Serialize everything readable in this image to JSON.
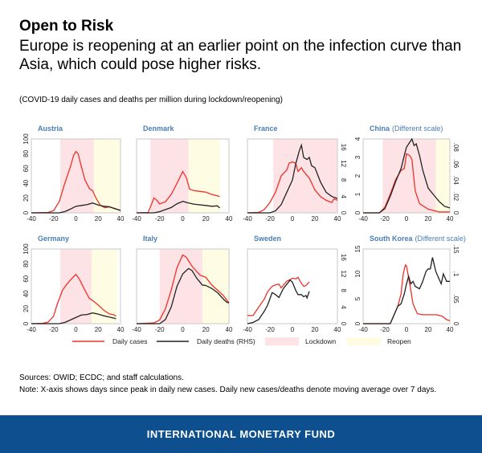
{
  "header": {
    "title": "Open to Risk",
    "subtitle": "Europe is reopening at an earlier point on the infection curve than Asia, which could pose higher risks.",
    "caption": "(COVID-19 daily cases and deaths per million during lockdown/reopening)"
  },
  "sources": "Sources: OWID; ECDC; and staff calculations.",
  "note": "Note: X-axis shows days since peak in daily new cases. Daily new cases/deaths denote moving average over 7 days.",
  "footer": "INTERNATIONAL MONETARY FUND",
  "colors": {
    "cases": "#f0302a",
    "deaths": "#222222",
    "lockdown": "#fde3e5",
    "reopen": "#fefde3",
    "title": "#4a7fb5",
    "footer": "#0d4f8f"
  },
  "legend": {
    "cases": "Daily cases",
    "deaths": "Daily deaths (RHS)",
    "lockdown": "Lockdown",
    "reopen": "Reopen"
  },
  "chart_data": [
    {
      "type": "line",
      "title": "Austria",
      "xlim": [
        -40,
        40
      ],
      "xticks": [
        "-40",
        "-20",
        "0",
        "20",
        "40"
      ],
      "ylim": [
        0,
        100
      ],
      "yticks": [
        "0",
        "20",
        "40",
        "60",
        "80",
        "100"
      ],
      "y2lim": [
        0,
        18
      ],
      "lockdown": [
        -14,
        16
      ],
      "reopen": [
        16,
        40
      ],
      "cases": [
        [
          -40,
          0
        ],
        [
          -25,
          0.5
        ],
        [
          -20,
          3
        ],
        [
          -15,
          15
        ],
        [
          -10,
          40
        ],
        [
          -5,
          62
        ],
        [
          -2,
          78
        ],
        [
          0,
          83
        ],
        [
          2,
          80
        ],
        [
          5,
          62
        ],
        [
          8,
          45
        ],
        [
          12,
          33
        ],
        [
          15,
          30
        ],
        [
          18,
          20
        ],
        [
          22,
          10
        ],
        [
          26,
          7
        ],
        [
          30,
          8
        ],
        [
          35,
          6
        ],
        [
          40,
          3
        ]
      ],
      "deaths": [
        [
          -40,
          0
        ],
        [
          -15,
          0
        ],
        [
          -10,
          0.3
        ],
        [
          -5,
          0.9
        ],
        [
          0,
          1.6
        ],
        [
          5,
          1.8
        ],
        [
          10,
          2.0
        ],
        [
          15,
          2.4
        ],
        [
          20,
          1.9
        ],
        [
          25,
          1.6
        ],
        [
          30,
          1.5
        ],
        [
          35,
          1.0
        ],
        [
          40,
          0.6
        ]
      ]
    },
    {
      "type": "line",
      "title": "Denmark",
      "xlim": [
        -40,
        40
      ],
      "xticks": [
        "-40",
        "-20",
        "0",
        "20",
        "40"
      ],
      "ylim": [
        0,
        100
      ],
      "y2lim": [
        0,
        18
      ],
      "lockdown": [
        -28,
        5
      ],
      "reopen": [
        5,
        32
      ],
      "cases": [
        [
          -40,
          0
        ],
        [
          -30,
          0.5
        ],
        [
          -28,
          8
        ],
        [
          -25,
          20
        ],
        [
          -23,
          18
        ],
        [
          -20,
          12
        ],
        [
          -15,
          15
        ],
        [
          -10,
          25
        ],
        [
          -5,
          40
        ],
        [
          0,
          56
        ],
        [
          3,
          48
        ],
        [
          6,
          32
        ],
        [
          10,
          30
        ],
        [
          15,
          29
        ],
        [
          20,
          28
        ],
        [
          25,
          25
        ],
        [
          30,
          23
        ],
        [
          32,
          22
        ]
      ],
      "deaths": [
        [
          -40,
          0
        ],
        [
          -25,
          0
        ],
        [
          -20,
          0.3
        ],
        [
          -10,
          1.3
        ],
        [
          -5,
          2.2
        ],
        [
          0,
          2.8
        ],
        [
          5,
          2.4
        ],
        [
          10,
          2.1
        ],
        [
          20,
          1.8
        ],
        [
          25,
          1.6
        ],
        [
          30,
          1.7
        ],
        [
          32,
          1.2
        ]
      ]
    },
    {
      "type": "line",
      "title": "France",
      "xlim": [
        -40,
        40
      ],
      "xticks": [
        "-40",
        "-20",
        "0",
        "20",
        "40"
      ],
      "ylim": [
        0,
        100
      ],
      "y2lim": [
        0,
        18
      ],
      "y2ticks": [
        "0",
        "4",
        "8",
        "12",
        "16"
      ],
      "lockdown": [
        -17,
        40
      ],
      "cases": [
        [
          -40,
          0
        ],
        [
          -30,
          0.6
        ],
        [
          -25,
          4.4
        ],
        [
          -20,
          14
        ],
        [
          -15,
          28
        ],
        [
          -10,
          50
        ],
        [
          -5,
          58
        ],
        [
          -3,
          67
        ],
        [
          0,
          69
        ],
        [
          3,
          67
        ],
        [
          5,
          56
        ],
        [
          8,
          61
        ],
        [
          10,
          56
        ],
        [
          15,
          47
        ],
        [
          20,
          31
        ],
        [
          25,
          22
        ],
        [
          30,
          17
        ],
        [
          35,
          14
        ],
        [
          37,
          19
        ],
        [
          40,
          17
        ]
      ],
      "deaths": [
        [
          -40,
          0
        ],
        [
          -20,
          0
        ],
        [
          -15,
          0.5
        ],
        [
          -10,
          2
        ],
        [
          -5,
          5
        ],
        [
          0,
          8
        ],
        [
          3,
          12
        ],
        [
          6,
          15
        ],
        [
          8,
          16.5
        ],
        [
          10,
          13.5
        ],
        [
          13,
          13
        ],
        [
          15,
          13.5
        ],
        [
          17,
          11.5
        ],
        [
          20,
          11
        ],
        [
          25,
          7.5
        ],
        [
          30,
          5
        ],
        [
          35,
          4
        ],
        [
          40,
          3.5
        ]
      ]
    },
    {
      "type": "line",
      "title": "China",
      "title_note": "(Different scale)",
      "xlim": [
        -40,
        40
      ],
      "xticks": [
        "-40",
        "-20",
        "0",
        "20",
        "40"
      ],
      "ylim": [
        0,
        4
      ],
      "yticks": [
        "0",
        "1",
        "2",
        "3",
        "4"
      ],
      "y2lim": [
        0,
        0.09
      ],
      "y2ticks": [
        "0",
        ".02",
        ".04",
        ".06",
        ".08"
      ],
      "lockdown": [
        -22,
        27
      ],
      "reopen": [
        27,
        40
      ],
      "cases": [
        [
          -40,
          0
        ],
        [
          -25,
          0
        ],
        [
          -20,
          0.3
        ],
        [
          -15,
          1
        ],
        [
          -10,
          1.8
        ],
        [
          -5,
          2.3
        ],
        [
          -2,
          2.4
        ],
        [
          0,
          3.2
        ],
        [
          3,
          3.1
        ],
        [
          5,
          2.9
        ],
        [
          8,
          1.2
        ],
        [
          12,
          0.5
        ],
        [
          20,
          0.2
        ],
        [
          30,
          0.05
        ],
        [
          40,
          0.05
        ]
      ],
      "deaths": [
        [
          -40,
          0
        ],
        [
          -25,
          0
        ],
        [
          -20,
          0.005
        ],
        [
          -15,
          0.02
        ],
        [
          -10,
          0.038
        ],
        [
          -5,
          0.054
        ],
        [
          -2,
          0.07
        ],
        [
          0,
          0.08
        ],
        [
          2,
          0.084
        ],
        [
          5,
          0.09
        ],
        [
          7,
          0.082
        ],
        [
          9,
          0.084
        ],
        [
          12,
          0.07
        ],
        [
          15,
          0.052
        ],
        [
          20,
          0.03
        ],
        [
          25,
          0.022
        ],
        [
          30,
          0.014
        ],
        [
          35,
          0.008
        ],
        [
          40,
          0.006
        ]
      ]
    },
    {
      "type": "line",
      "title": "Germany",
      "xlim": [
        -40,
        40
      ],
      "xticks": [
        "-40",
        "-20",
        "0",
        "20",
        "40"
      ],
      "ylim": [
        0,
        100
      ],
      "yticks": [
        "0",
        "20",
        "40",
        "60",
        "80",
        "100"
      ],
      "y2lim": [
        0,
        18
      ],
      "lockdown": [
        -14,
        14
      ],
      "reopen": [
        14,
        37
      ],
      "cases": [
        [
          -40,
          0
        ],
        [
          -30,
          0.5
        ],
        [
          -25,
          2
        ],
        [
          -20,
          10
        ],
        [
          -17,
          25
        ],
        [
          -12,
          45
        ],
        [
          -8,
          53
        ],
        [
          -4,
          60
        ],
        [
          0,
          66
        ],
        [
          3,
          60
        ],
        [
          8,
          45
        ],
        [
          12,
          34
        ],
        [
          15,
          31
        ],
        [
          20,
          25
        ],
        [
          25,
          18
        ],
        [
          30,
          13
        ],
        [
          34,
          12
        ],
        [
          36,
          10
        ]
      ],
      "deaths": [
        [
          -40,
          0
        ],
        [
          -15,
          0
        ],
        [
          -10,
          0.3
        ],
        [
          -5,
          0.9
        ],
        [
          0,
          1.5
        ],
        [
          5,
          2.1
        ],
        [
          10,
          2.2
        ],
        [
          15,
          2.6
        ],
        [
          20,
          2.3
        ],
        [
          25,
          1.9
        ],
        [
          30,
          1.6
        ],
        [
          36,
          1.2
        ]
      ]
    },
    {
      "type": "line",
      "title": "Italy",
      "xlim": [
        -40,
        40
      ],
      "xticks": [
        "-40",
        "-20",
        "0",
        "20",
        "40"
      ],
      "ylim": [
        0,
        100
      ],
      "y2lim": [
        0,
        18
      ],
      "lockdown": [
        -20,
        17
      ],
      "reopen": [
        17,
        40
      ],
      "cases": [
        [
          -40,
          0
        ],
        [
          -25,
          1
        ],
        [
          -20,
          5
        ],
        [
          -15,
          20
        ],
        [
          -10,
          45
        ],
        [
          -5,
          75
        ],
        [
          0,
          92
        ],
        [
          3,
          89
        ],
        [
          8,
          77
        ],
        [
          12,
          70
        ],
        [
          15,
          65
        ],
        [
          20,
          62
        ],
        [
          25,
          52
        ],
        [
          30,
          45
        ],
        [
          35,
          38
        ],
        [
          40,
          28
        ]
      ],
      "deaths": [
        [
          -40,
          0
        ],
        [
          -20,
          0
        ],
        [
          -15,
          1
        ],
        [
          -10,
          4
        ],
        [
          -5,
          9
        ],
        [
          0,
          12
        ],
        [
          5,
          13.3
        ],
        [
          8,
          12.8
        ],
        [
          12,
          11
        ],
        [
          17,
          9.3
        ],
        [
          20,
          9.2
        ],
        [
          25,
          8.5
        ],
        [
          30,
          7.5
        ],
        [
          35,
          6
        ],
        [
          38,
          5.2
        ],
        [
          40,
          5
        ]
      ]
    },
    {
      "type": "line",
      "title": "Sweden",
      "xlim": [
        -40,
        40
      ],
      "xticks": [
        "-40",
        "-20",
        "0",
        "20",
        "40"
      ],
      "ylim": [
        0,
        100
      ],
      "y2lim": [
        0,
        18
      ],
      "y2ticks": [
        "0",
        "4",
        "8",
        "12",
        "16"
      ],
      "cases": [
        [
          -40,
          11
        ],
        [
          -35,
          11
        ],
        [
          -30,
          22
        ],
        [
          -25,
          33
        ],
        [
          -22,
          43
        ],
        [
          -18,
          50
        ],
        [
          -15,
          52
        ],
        [
          -12,
          53
        ],
        [
          -10,
          48
        ],
        [
          -5,
          57
        ],
        [
          -2,
          59
        ],
        [
          0,
          61
        ],
        [
          3,
          60
        ],
        [
          5,
          62
        ],
        [
          8,
          54
        ],
        [
          10,
          50
        ],
        [
          12,
          51
        ],
        [
          15,
          56
        ]
      ],
      "deaths": [
        [
          -40,
          0
        ],
        [
          -35,
          0.3
        ],
        [
          -30,
          1
        ],
        [
          -25,
          3
        ],
        [
          -22,
          4.5
        ],
        [
          -18,
          7.5
        ],
        [
          -15,
          7
        ],
        [
          -12,
          6.3
        ],
        [
          -8,
          8.5
        ],
        [
          -5,
          9.5
        ],
        [
          -2,
          10.5
        ],
        [
          0,
          10
        ],
        [
          3,
          8
        ],
        [
          5,
          7
        ],
        [
          8,
          7
        ],
        [
          10,
          6.5
        ],
        [
          12,
          6.8
        ],
        [
          13,
          6.2
        ],
        [
          15,
          7.8
        ]
      ]
    },
    {
      "type": "line",
      "title": "South Korea",
      "title_note": "(Different scale)",
      "xlim": [
        -40,
        40
      ],
      "xticks": [
        "-40",
        "-20",
        "0",
        "20",
        "40"
      ],
      "ylim": [
        0,
        15
      ],
      "yticks": [
        "0",
        "5",
        "10",
        "15"
      ],
      "y2lim": [
        0,
        0.15
      ],
      "y2ticks": [
        "0",
        ".05",
        ".1",
        ".15"
      ],
      "cases": [
        [
          -40,
          0
        ],
        [
          -15,
          0
        ],
        [
          -12,
          1.5
        ],
        [
          -8,
          3.5
        ],
        [
          -5,
          6
        ],
        [
          -3,
          10
        ],
        [
          -1,
          11.8
        ],
        [
          0,
          11.6
        ],
        [
          3,
          8
        ],
        [
          6,
          4
        ],
        [
          10,
          2
        ],
        [
          15,
          1.8
        ],
        [
          20,
          1.8
        ],
        [
          28,
          1.8
        ],
        [
          33,
          1.5
        ],
        [
          37,
          0.8
        ],
        [
          40,
          0.6
        ]
      ],
      "deaths": [
        [
          -40,
          0
        ],
        [
          -15,
          0
        ],
        [
          -12,
          0.015
        ],
        [
          -8,
          0.035
        ],
        [
          -5,
          0.04
        ],
        [
          -2,
          0.06
        ],
        [
          0,
          0.08
        ],
        [
          2,
          0.095
        ],
        [
          4,
          0.08
        ],
        [
          6,
          0.085
        ],
        [
          8,
          0.075
        ],
        [
          12,
          0.07
        ],
        [
          15,
          0.085
        ],
        [
          18,
          0.105
        ],
        [
          20,
          0.11
        ],
        [
          22,
          0.11
        ],
        [
          24,
          0.133
        ],
        [
          27,
          0.105
        ],
        [
          30,
          0.09
        ],
        [
          32,
          0.08
        ],
        [
          34,
          0.1
        ],
        [
          37,
          0.085
        ],
        [
          40,
          0.085
        ]
      ]
    }
  ]
}
